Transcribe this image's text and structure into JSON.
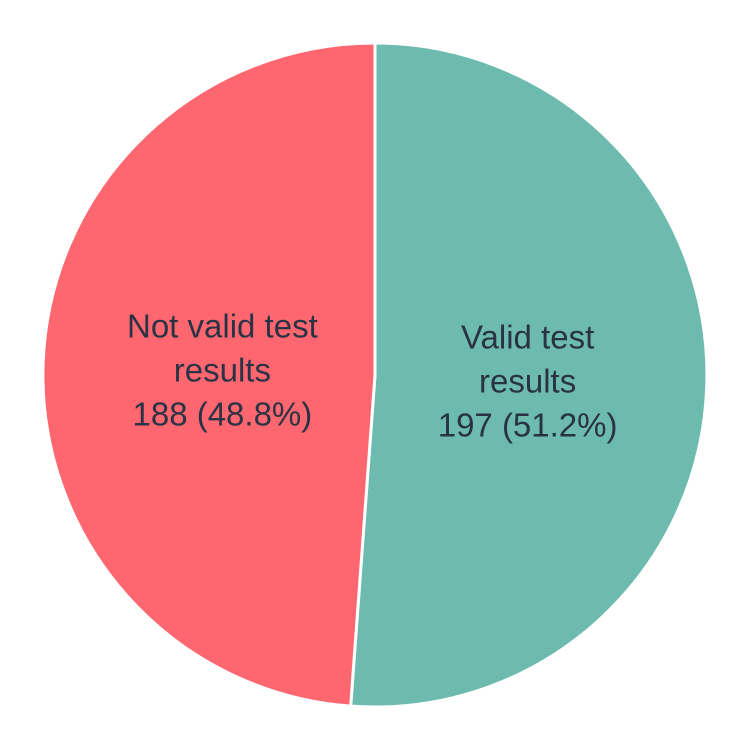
{
  "chart_data": {
    "type": "pie",
    "title": "",
    "slices": [
      {
        "name": "Valid test results",
        "label_lines": [
          "Valid test",
          "results",
          "197 (51.2%)"
        ],
        "value": 197,
        "percent": 51.2,
        "color": "#6dbbae"
      },
      {
        "name": "Not valid test results",
        "label_lines": [
          "Not valid test",
          "results",
          "188 (48.8%)"
        ],
        "value": 188,
        "percent": 48.8,
        "color": "#fe6770"
      }
    ],
    "start_angle": "12 o'clock",
    "direction": "clockwise",
    "legend": "none"
  }
}
